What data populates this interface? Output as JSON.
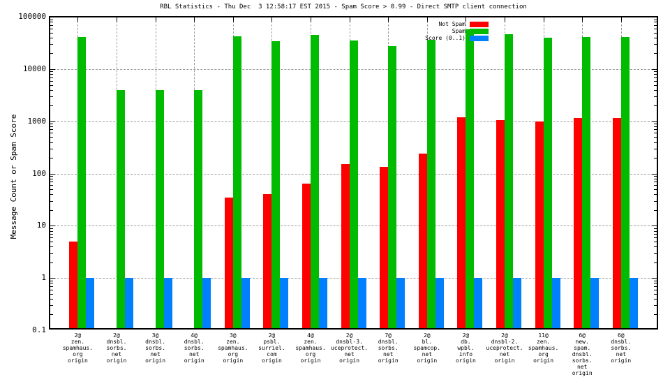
{
  "chart_data": {
    "type": "bar",
    "title": "RBL Statistics - Thu Dec  3 12:58:17 EST 2015 - Spam Score > 0.99 - Direct SMTP client connection",
    "ylabel": "Message Count or Spam Score",
    "xlabel": "",
    "yscale": "log",
    "ylim": [
      0.1,
      100000
    ],
    "ytick_labels": [
      "100000",
      "10000",
      "1000",
      "100",
      "10",
      "1",
      "0.1"
    ],
    "ytick_values": [
      100000,
      10000,
      1000,
      100,
      10,
      1,
      0.1
    ],
    "grid": true,
    "legend_position": "top-right-inside",
    "categories": [
      [
        "2@",
        "zen.",
        "spamhaus.",
        "org",
        "origin"
      ],
      [
        "2@",
        "dnsbl.",
        "sorbs.",
        "net",
        "origin"
      ],
      [
        "3@",
        "dnsbl.",
        "sorbs.",
        "net",
        "origin"
      ],
      [
        "4@",
        "dnsbl.",
        "sorbs.",
        "net",
        "origin"
      ],
      [
        "3@",
        "zen.",
        "spamhaus.",
        "org",
        "origin"
      ],
      [
        "2@",
        "psbl.",
        "surriel.",
        "com",
        "origin"
      ],
      [
        "4@",
        "zen.",
        "spamhaus.",
        "org",
        "origin"
      ],
      [
        "2@",
        "dnsbl-3.",
        "uceprotect.",
        "net",
        "origin"
      ],
      [
        "7@",
        "dnsbl.",
        "sorbs.",
        "net",
        "origin"
      ],
      [
        "2@",
        "bl.",
        "spamcop.",
        "net",
        "origin"
      ],
      [
        "2@",
        "db.",
        "wpbl.",
        "info",
        "origin"
      ],
      [
        "2@",
        "dnsbl-2.",
        "uceprotect.",
        "net",
        "origin"
      ],
      [
        "11@",
        "zen.",
        "spamhaus.",
        "org",
        "origin"
      ],
      [
        "6@",
        "new.",
        "spam.",
        "dnsbl.",
        "sorbs.",
        "net",
        "origin"
      ],
      [
        "6@",
        "dnsbl.",
        "sorbs.",
        "net",
        "origin"
      ]
    ],
    "series": [
      {
        "name": "Not Spam",
        "color": "#ff0000",
        "values": [
          5,
          null,
          null,
          null,
          35,
          40,
          65,
          150,
          135,
          240,
          1200,
          1050,
          1000,
          1150,
          1150
        ]
      },
      {
        "name": "Spam",
        "color": "#00bb00",
        "values": [
          41000,
          4000,
          4000,
          4000,
          42000,
          34000,
          45000,
          35000,
          28000,
          36000,
          57000,
          46000,
          40000,
          41000,
          41000
        ]
      },
      {
        "name": "Score (0..1)",
        "color": "#0080ff",
        "values": [
          1,
          1,
          1,
          1,
          1,
          1,
          1,
          1,
          1,
          1,
          1,
          1,
          1,
          1,
          1
        ]
      }
    ]
  }
}
